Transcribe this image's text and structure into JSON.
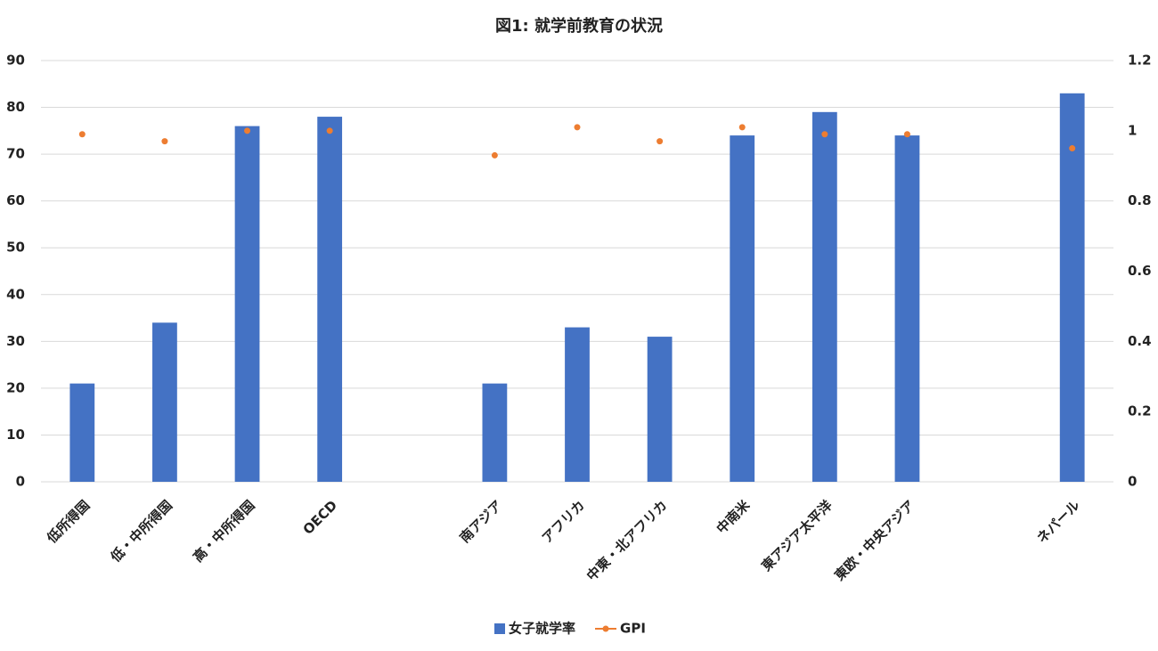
{
  "chart_data": {
    "type": "bar",
    "title": "図1: 就学前教育の状況",
    "categories": [
      "低所得国",
      "低・中所得国",
      "高・中所得国",
      "OECD",
      null,
      "南アジア",
      "アフリカ",
      "中東・北アフリカ",
      "中南米",
      "東アジア太平洋",
      "東欧・中央アジア",
      null,
      "ネパール"
    ],
    "series": [
      {
        "name": "女子就学率",
        "type": "bar",
        "color": "#4472c4",
        "values": [
          21,
          34,
          76,
          78,
          null,
          21,
          33,
          31,
          74,
          79,
          74,
          null,
          83
        ]
      },
      {
        "name": "GPI",
        "type": "scatter",
        "axis": "y2",
        "color": "#ed7d31",
        "values": [
          0.99,
          0.97,
          1.0,
          1.0,
          null,
          0.93,
          1.01,
          0.97,
          1.01,
          0.99,
          0.99,
          null,
          0.95
        ]
      }
    ],
    "ylim": [
      0,
      90
    ],
    "yticks": [
      0,
      10,
      20,
      30,
      40,
      50,
      60,
      70,
      80,
      90
    ],
    "y2lim": [
      0,
      1.2
    ],
    "y2ticks": [
      0,
      0.2,
      0.4,
      0.6,
      0.8,
      1,
      1.2
    ],
    "grid": true,
    "legend": "bottom"
  }
}
